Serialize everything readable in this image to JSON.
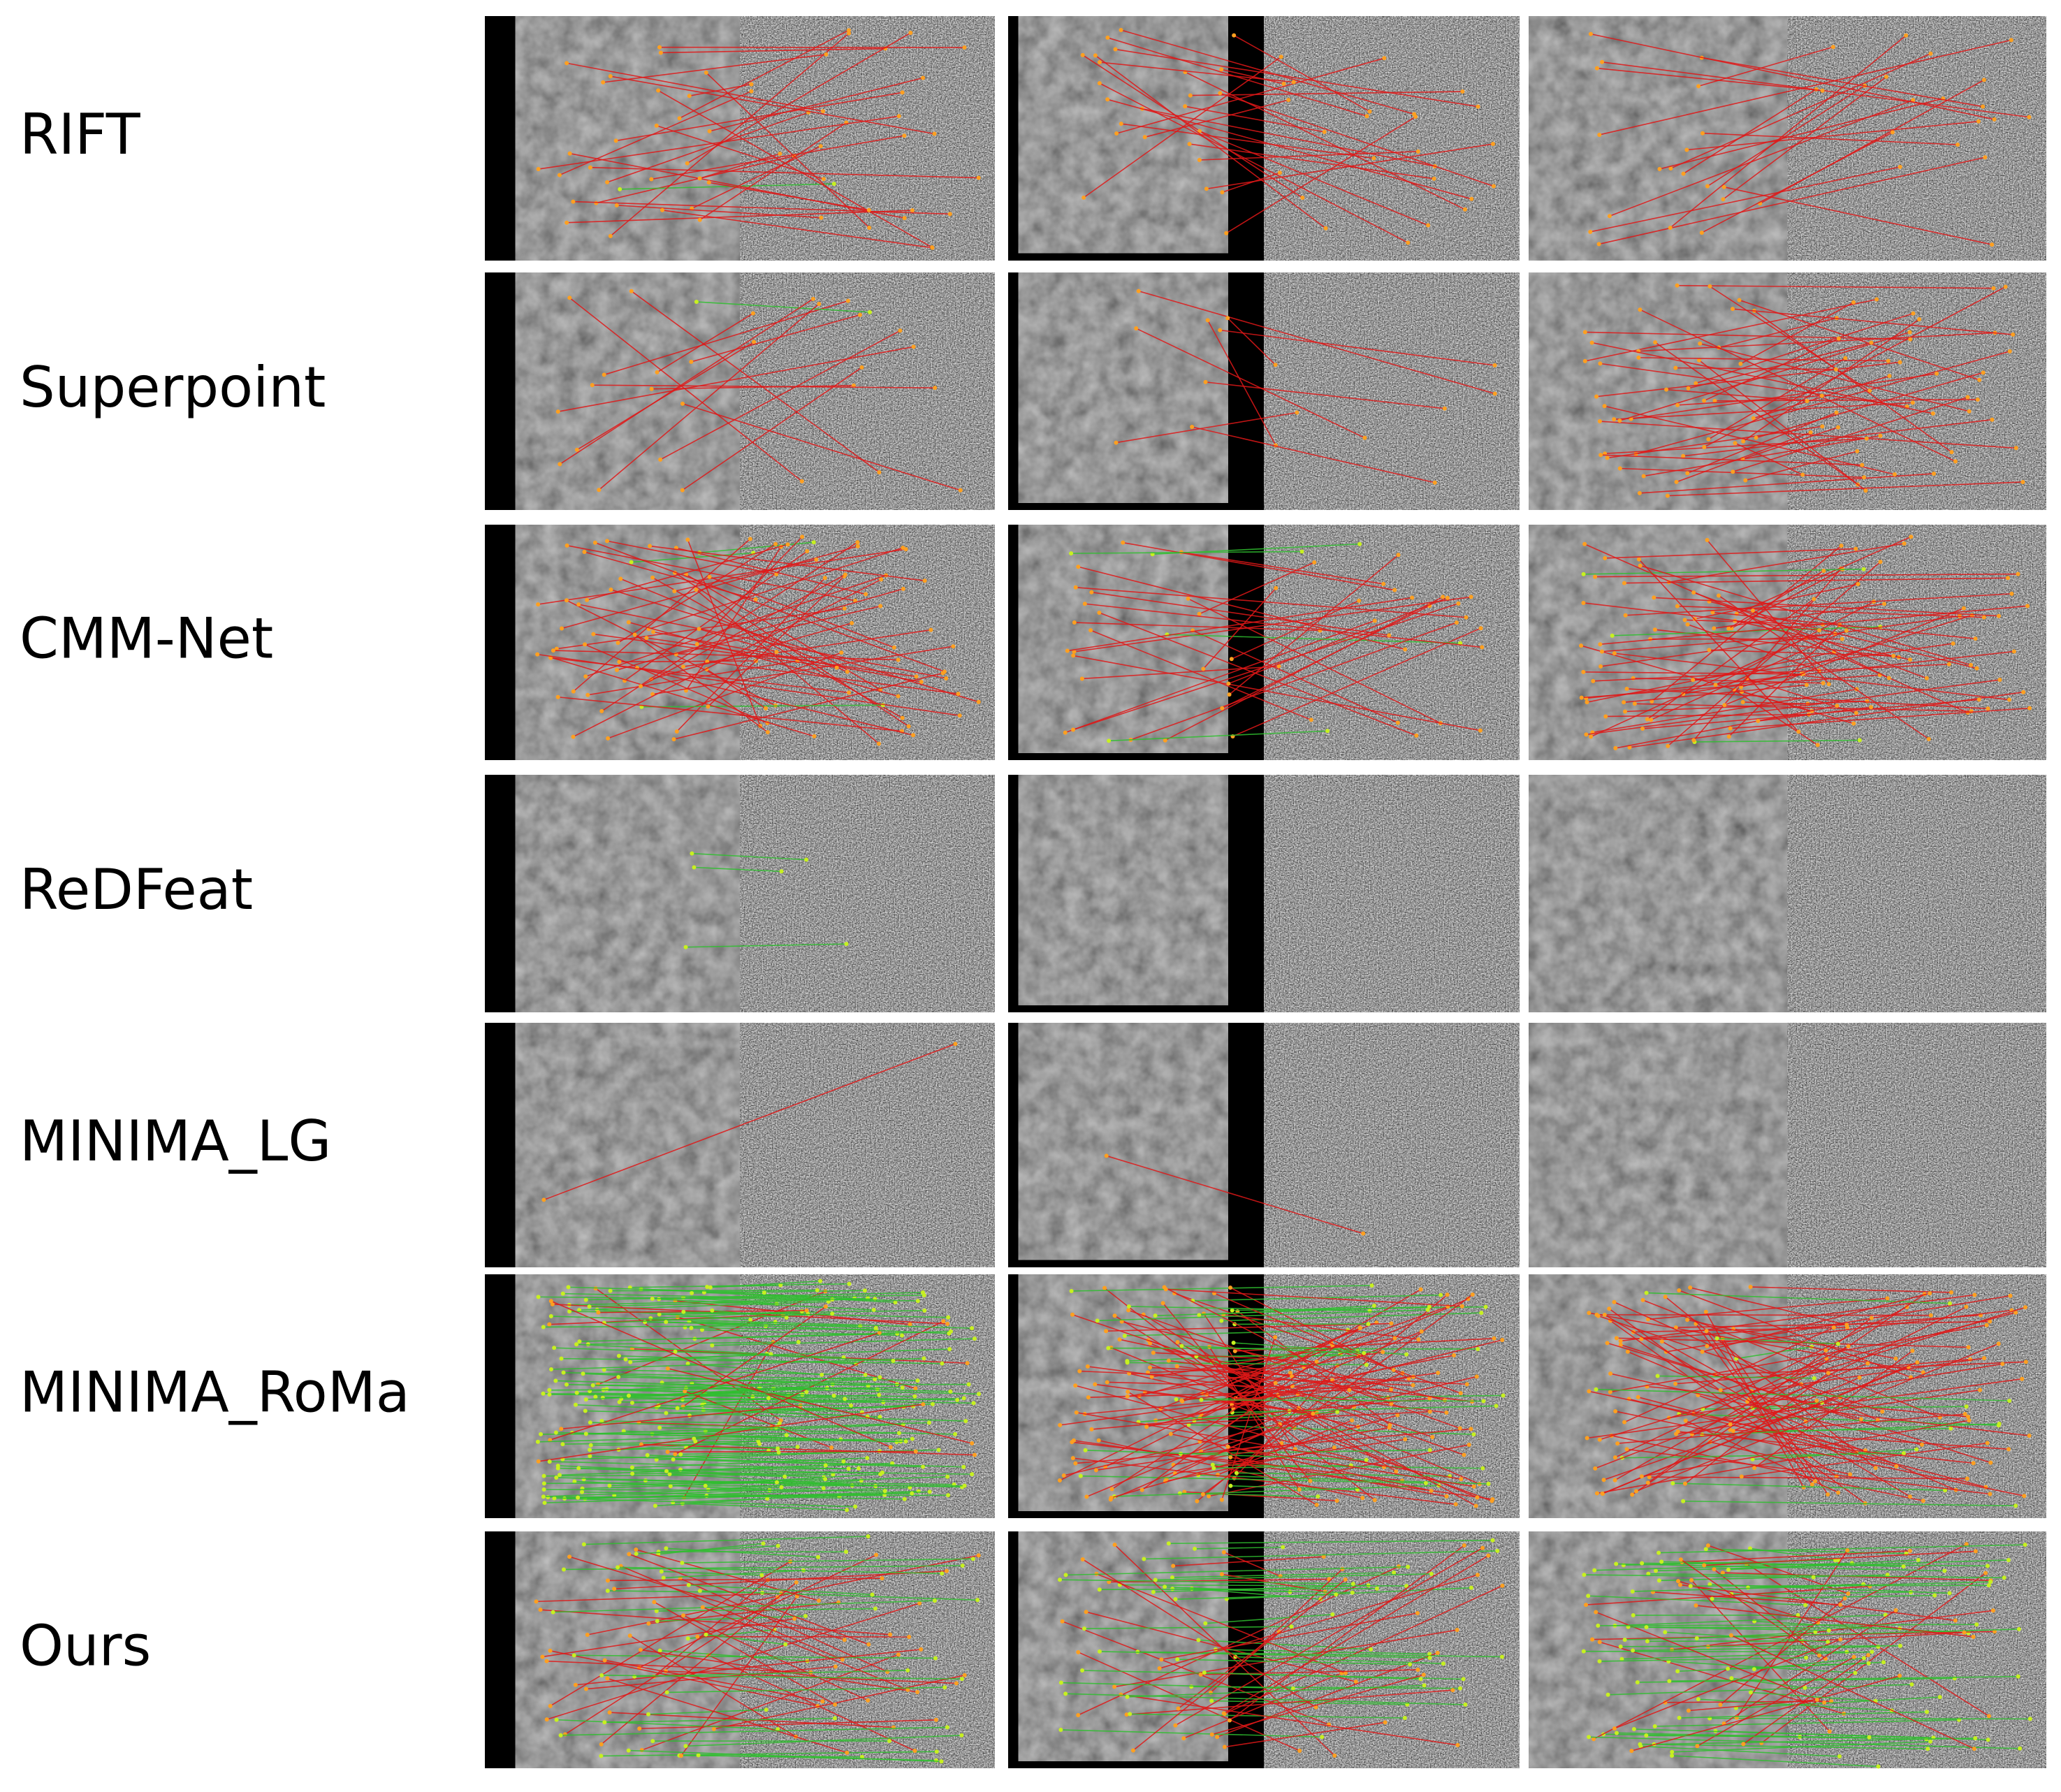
{
  "rows": [
    {
      "label": "RIFT"
    },
    {
      "label": "Superpoint"
    },
    {
      "label": "CMM-Net"
    },
    {
      "label": "ReDFeat"
    },
    {
      "label": "MINIMA_LG"
    },
    {
      "label": "MINIMA_RoMa"
    },
    {
      "label": "Ours"
    }
  ]
}
